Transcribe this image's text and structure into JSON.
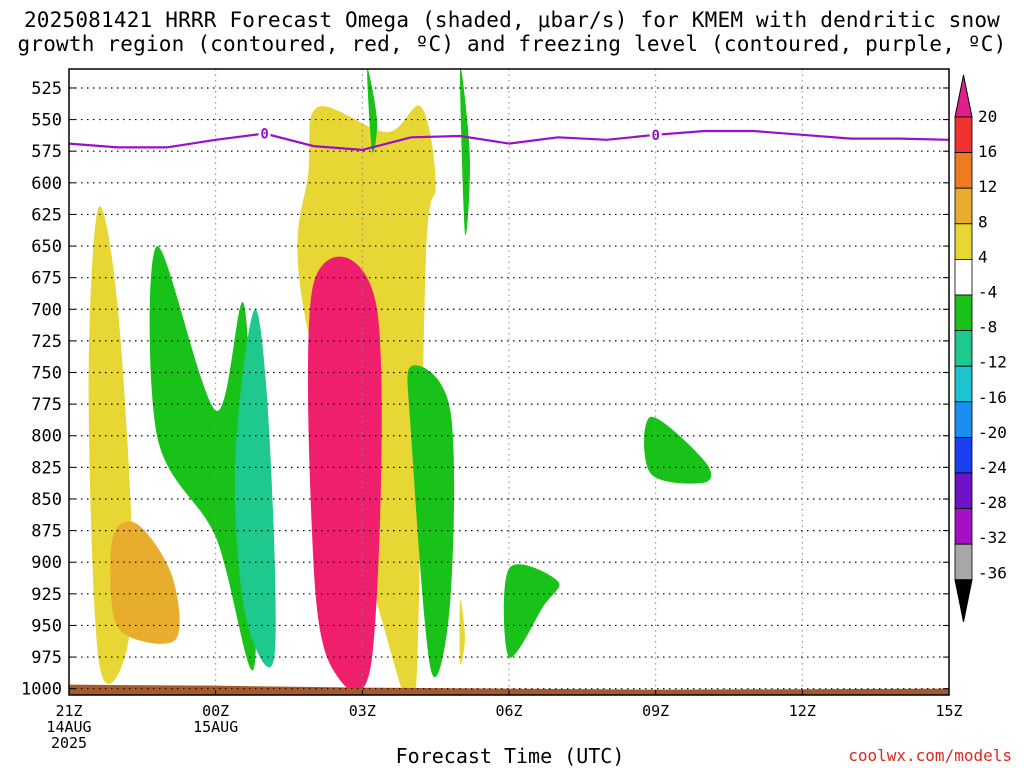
{
  "title_line1": "2025081421 HRRR Forecast Omega (shaded, μbar/s) for KMEM with dendritic snow",
  "title_line2": "growth region (contoured, red, ºC) and freezing level (contoured, purple, ºC)",
  "xlabel": "Forecast Time (UTC)",
  "credit": "coolwx.com/models",
  "chart_data": {
    "type": "heatmap",
    "title": "2025081421 HRRR Forecast Omega (shaded, μbar/s) for KMEM with dendritic snow growth region (contoured, red, ºC) and freezing level (contoured, purple, ºC)",
    "xlabel": "Forecast Time (UTC)",
    "ylabel": "",
    "x_unit": "forecast hour",
    "xlim": [
      0,
      18
    ],
    "y_ticks": [
      525,
      550,
      575,
      600,
      625,
      650,
      675,
      700,
      725,
      750,
      775,
      800,
      825,
      850,
      875,
      900,
      925,
      950,
      975,
      1000
    ],
    "ylim": [
      510,
      1005
    ],
    "x_ticks": [
      {
        "x": 0,
        "lines": [
          "21Z",
          "14AUG",
          "2025"
        ]
      },
      {
        "x": 3,
        "lines": [
          "00Z",
          "15AUG"
        ]
      },
      {
        "x": 6,
        "lines": [
          "03Z"
        ]
      },
      {
        "x": 9,
        "lines": [
          "06Z"
        ]
      },
      {
        "x": 12,
        "lines": [
          "09Z"
        ]
      },
      {
        "x": 15,
        "lines": [
          "12Z"
        ]
      },
      {
        "x": 18,
        "lines": [
          "15Z"
        ]
      }
    ],
    "colorbar": {
      "levels": [
        20,
        16,
        12,
        8,
        4,
        -4,
        -8,
        -12,
        -16,
        -20,
        -24,
        -28,
        -32,
        -36
      ],
      "colors": [
        "#f01f6e",
        "#f0322f",
        "#ee7a22",
        "#e8ad2d",
        "#e7d634",
        "#ffffff",
        "#19c218",
        "#1fc98e",
        "#1ec3cf",
        "#1b8ff0",
        "#1c3ff0",
        "#6f12c8",
        "#a60fc6",
        "#a7a7a7",
        "#000000"
      ],
      "top_triangle": "#e01f8a",
      "bottom_triangle": "#000000"
    },
    "freezing_level": {
      "label": "0",
      "color": "#9a10c8",
      "x": [
        0,
        1,
        2,
        3,
        4,
        5,
        6,
        7,
        8,
        9,
        10,
        11,
        12,
        13,
        14,
        15,
        16,
        17,
        18
      ],
      "y": [
        569,
        572,
        572,
        566,
        561,
        571,
        574,
        564,
        563,
        569,
        564,
        566,
        562,
        559,
        559,
        562,
        565,
        565,
        566
      ]
    },
    "surface_color": "#a45a2e",
    "series": [
      {
        "name": "omega_shaded_regions",
        "values": [
          {
            "level": 4,
            "color": "#e7d634",
            "note": "early column 21Z-00Z",
            "x": [
              0.6,
              1.0,
              1.3,
              1.1,
              0.6,
              0.4
            ],
            "y": [
              620,
              700,
              900,
              980,
              975,
              760
            ]
          },
          {
            "level": 8,
            "color": "#e8ad2d",
            "x": [
              0.9,
              1.4,
              2.1,
              2.2,
              1.3,
              0.9
            ],
            "y": [
              880,
              870,
              910,
              960,
              960,
              940
            ]
          },
          {
            "level": -4,
            "color": "#19c218",
            "x": [
              1.8,
              3.0,
              3.6,
              3.8,
              3.0,
              1.8
            ],
            "y": [
              650,
              780,
              700,
              980,
              880,
              800
            ]
          },
          {
            "level": -12,
            "color": "#1fc98e",
            "x": [
              3.4,
              3.8,
              4.1,
              4.2,
              3.6
            ],
            "y": [
              820,
              700,
              800,
              975,
              940
            ]
          },
          {
            "level": 4,
            "color": "#e7d634",
            "note": "main column 01Z-05Z",
            "x": [
              4.9,
              5.1,
              6.5,
              7.2,
              7.5,
              7.3,
              7.1,
              6.8,
              4.8
            ],
            "y": [
              590,
              540,
              560,
              540,
              600,
              660,
              1000,
              1000,
              700
            ]
          },
          {
            "level": 20,
            "color": "#f01f6e",
            "x": [
              5.0,
              6.3,
              6.2,
              5.4,
              5.0
            ],
            "y": [
              680,
              700,
              975,
              985,
              900
            ]
          },
          {
            "level": -4,
            "color": "#19c218",
            "x": [
              7.0,
              7.8,
              7.8,
              7.4,
              7.0
            ],
            "y": [
              745,
              780,
              930,
              985,
              800
            ]
          },
          {
            "level": 4,
            "color": "#e7d634",
            "x": [
              8.0,
              8.1,
              8.0
            ],
            "y": [
              930,
              960,
              980
            ]
          },
          {
            "level": -4,
            "color": "#19c218",
            "x": [
              8.0,
              8.2,
              8.1
            ],
            "y": [
              510,
              580,
              640
            ]
          },
          {
            "level": -4,
            "color": "#19c218",
            "x": [
              6.1,
              6.3,
              6.2
            ],
            "y": [
              510,
              550,
              575
            ]
          },
          {
            "level": -4,
            "color": "#19c218",
            "x": [
              9.0,
              10.0,
              9.7,
              9.0
            ],
            "y": [
              905,
              915,
              935,
              975
            ]
          },
          {
            "level": -4,
            "color": "#19c218",
            "x": [
              11.9,
              13.0,
              13.0,
              11.9
            ],
            "y": [
              785,
              820,
              837,
              830
            ]
          }
        ]
      }
    ],
    "grid": true
  }
}
